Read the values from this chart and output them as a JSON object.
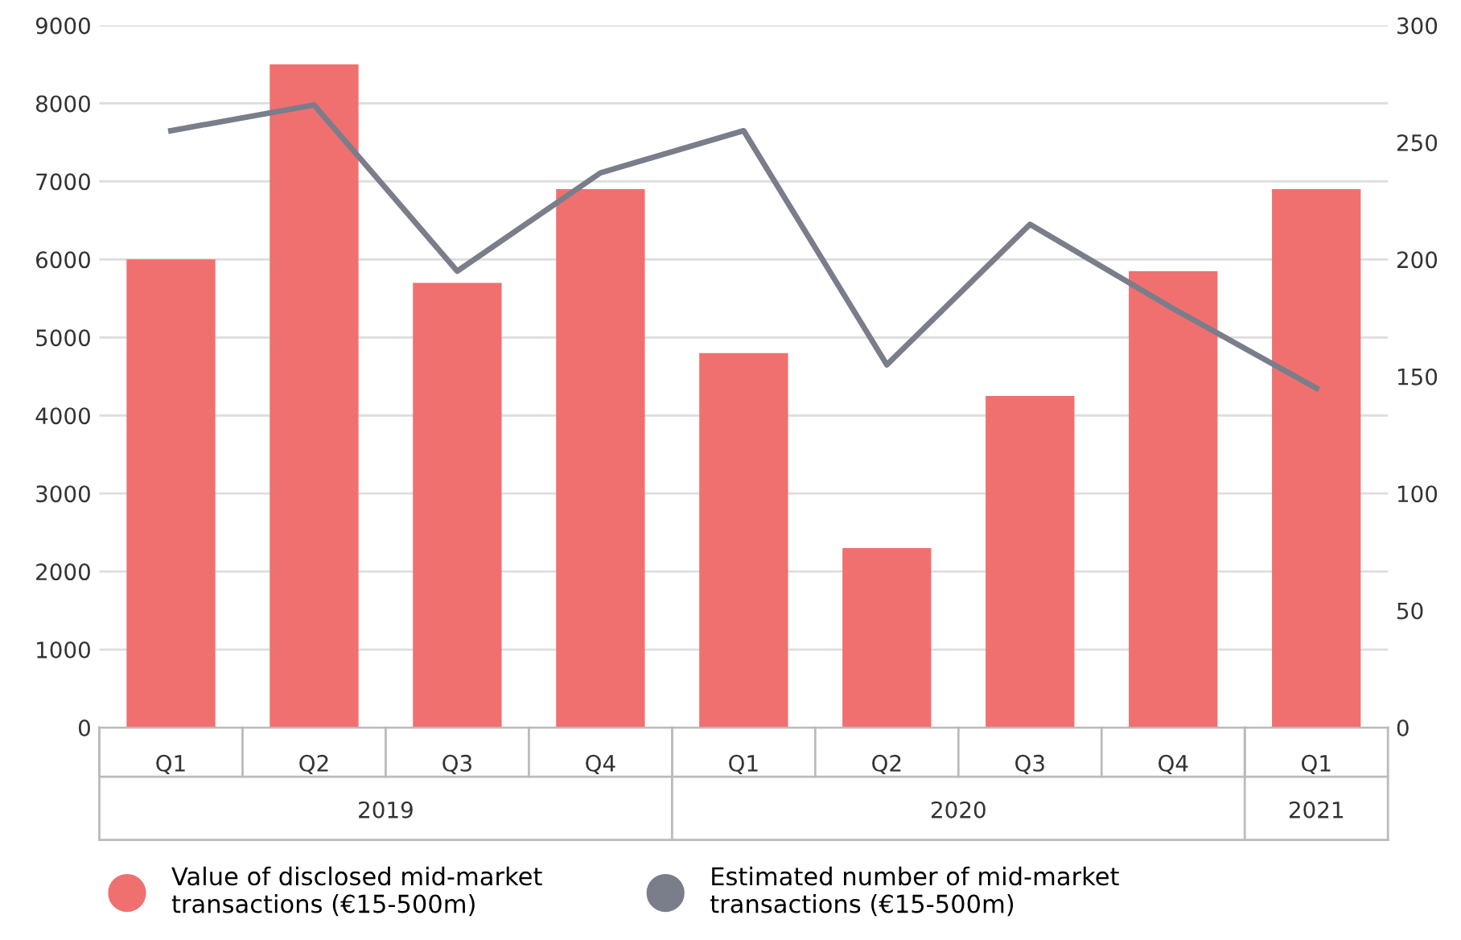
{
  "chart_data": {
    "type": "bar",
    "categories": [
      "Q1",
      "Q2",
      "Q3",
      "Q4",
      "Q1",
      "Q2",
      "Q3",
      "Q4",
      "Q1"
    ],
    "series": [
      {
        "name": "Value of disclosed mid-market transactions (€15-500m)",
        "color": "#f07070",
        "values": [
          6000,
          8500,
          5700,
          6900,
          4800,
          2300,
          4250,
          5850,
          6900
        ]
      },
      {
        "name": "Estimated number of mid-market transactions (€15-500m)",
        "type": "line",
        "axis": "y2",
        "color": "#7a7d8a",
        "values": [
          255,
          266,
          195,
          237,
          255,
          155,
          215,
          179,
          145
        ]
      }
    ],
    "ylim": [
      0,
      9000
    ],
    "yticks": [
      0,
      1000,
      2000,
      3000,
      4000,
      5000,
      6000,
      7000,
      8000,
      9000
    ],
    "y2lim": [
      0,
      300
    ],
    "y2ticks": [
      0,
      50,
      100,
      150,
      200,
      250,
      300
    ],
    "annotations": [
      "2019",
      "2020",
      "2021"
    ],
    "grid": "y",
    "legend": "bottom",
    "marker": "none",
    "line_style": "solid"
  }
}
